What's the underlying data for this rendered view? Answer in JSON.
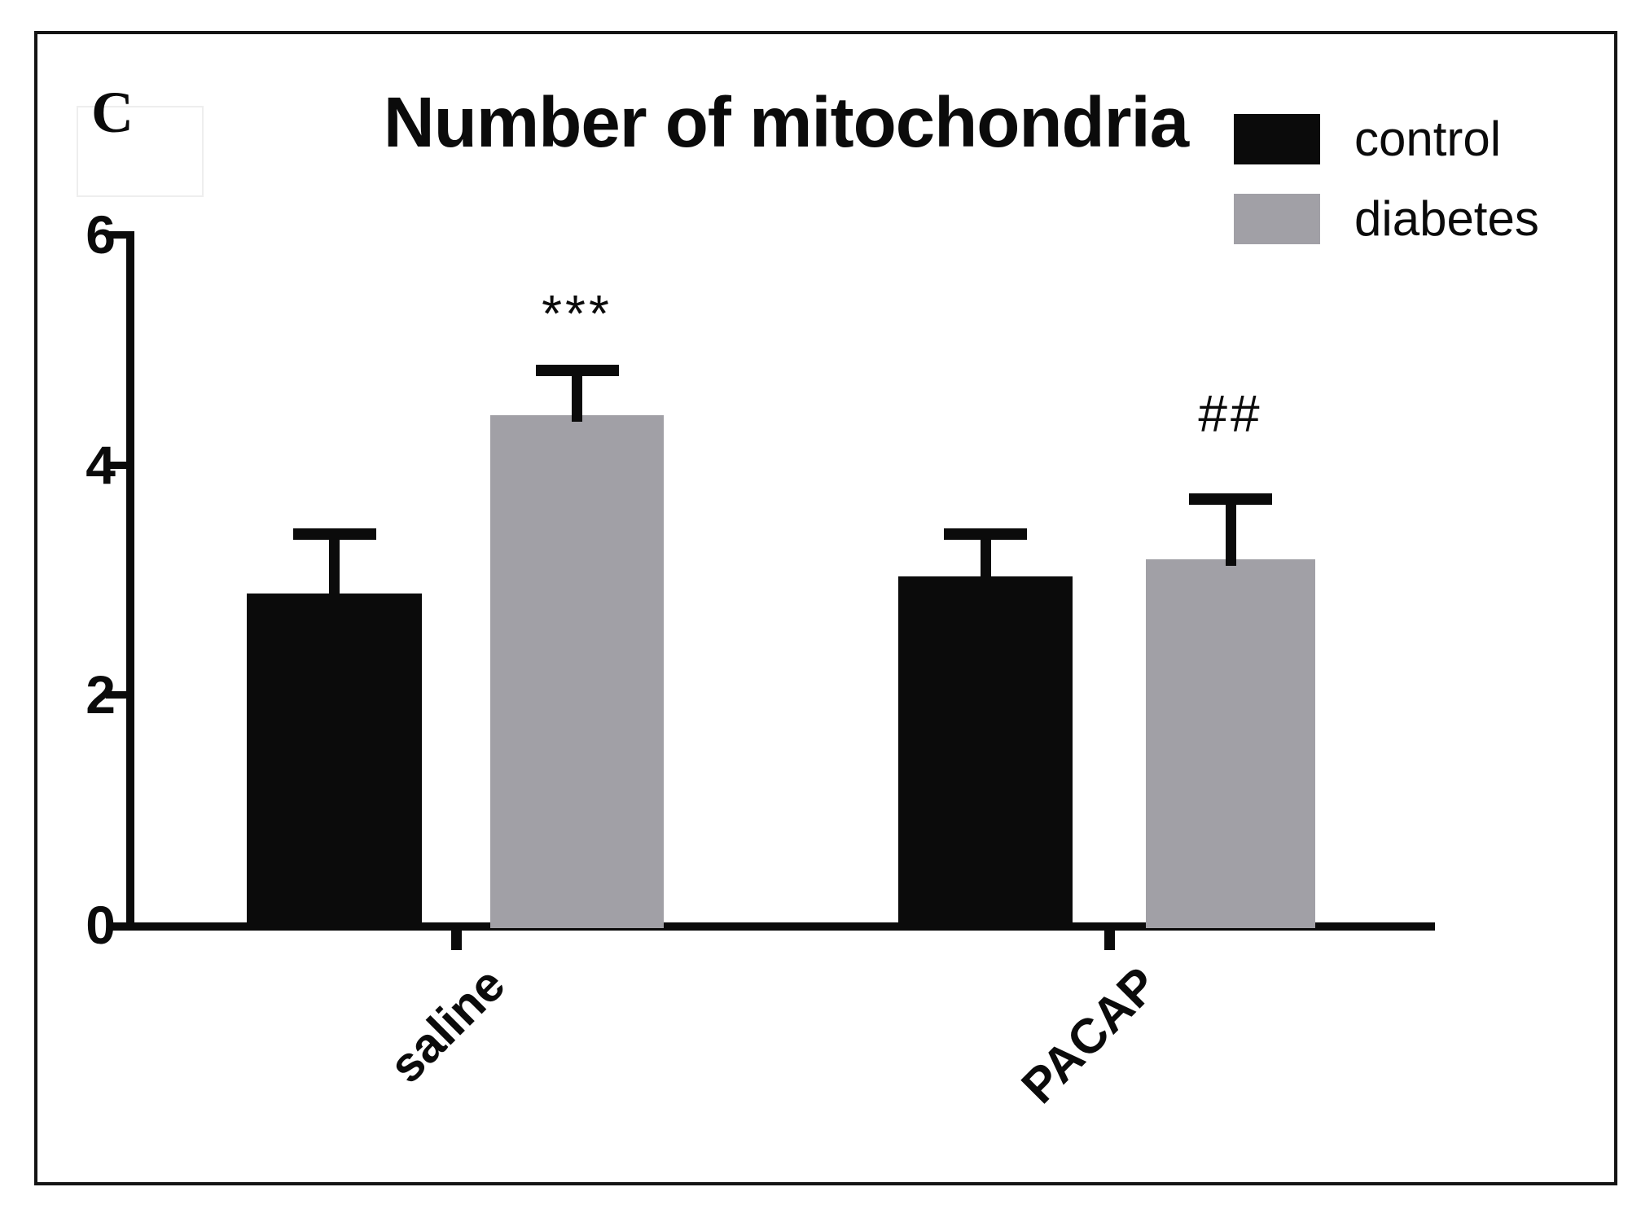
{
  "panel_label": "C",
  "title": "Number of mitochondria",
  "legend": {
    "items": [
      {
        "label": "control",
        "color": "#0b0b0b"
      },
      {
        "label": "diabetes",
        "color": "#a1a0a6"
      }
    ]
  },
  "axes": {
    "ytick_labels": [
      "0",
      "2",
      "4",
      "6"
    ]
  },
  "chart_data": {
    "type": "bar",
    "title": "Number of mitochondria",
    "categories": [
      "saline",
      "PACAP"
    ],
    "series": [
      {
        "name": "control",
        "color": "#0b0b0b",
        "values": [
          2.88,
          3.03
        ],
        "errors_up": [
          0.57,
          0.42
        ]
      },
      {
        "name": "diabetes",
        "color": "#a1a0a6",
        "values": [
          4.43,
          3.18
        ],
        "errors_up": [
          0.44,
          0.57
        ]
      }
    ],
    "ylim": [
      0,
      6
    ],
    "yticks": [
      0,
      2,
      4,
      6
    ],
    "xlabel": "",
    "ylabel": "",
    "grid": false,
    "legend_position": "top-right",
    "error_bars": "upper-only",
    "annotations": [
      {
        "text": "***",
        "category": "saline",
        "series": "diabetes"
      },
      {
        "text": "##",
        "category": "PACAP",
        "series": "diabetes"
      }
    ]
  }
}
